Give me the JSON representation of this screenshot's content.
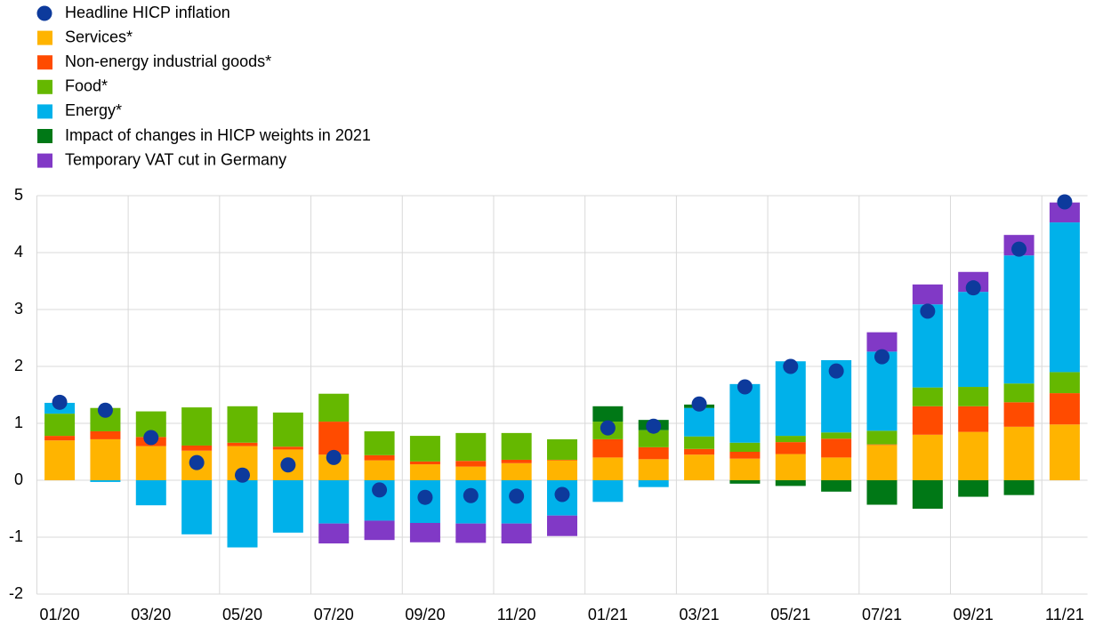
{
  "chart_data": {
    "type": "stacked-bar-dot",
    "categories": [
      "01/20",
      null,
      "03/20",
      null,
      "05/20",
      null,
      "07/20",
      null,
      "09/20",
      null,
      "11/20",
      null,
      "01/21",
      null,
      "03/21",
      null,
      "05/21",
      null,
      "07/21",
      null,
      "09/21",
      null,
      "11/21"
    ],
    "headline": {
      "name": "Headline HICP inflation",
      "color": "#0d3a9c",
      "values": [
        1.37,
        1.23,
        0.75,
        0.31,
        0.09,
        0.27,
        0.4,
        -0.17,
        -0.3,
        -0.27,
        -0.28,
        -0.25,
        0.92,
        0.95,
        1.34,
        1.64,
        2.0,
        1.92,
        2.17,
        2.97,
        3.38,
        4.06,
        4.89
      ]
    },
    "series": [
      {
        "name": "Services*",
        "color": "#ffb400",
        "values": [
          0.7,
          0.72,
          0.6,
          0.52,
          0.6,
          0.54,
          0.45,
          0.35,
          0.28,
          0.24,
          0.3,
          0.35,
          0.4,
          0.37,
          0.45,
          0.38,
          0.46,
          0.4,
          0.62,
          0.8,
          0.85,
          0.94,
          0.98
        ]
      },
      {
        "name": "Non-energy industrial goods*",
        "color": "#ff4b00",
        "values": [
          0.08,
          0.14,
          0.16,
          0.09,
          0.06,
          0.05,
          0.58,
          0.09,
          0.05,
          0.1,
          0.06,
          0.01,
          0.32,
          0.21,
          0.1,
          0.12,
          0.21,
          0.33,
          0.01,
          0.5,
          0.45,
          0.43,
          0.55
        ]
      },
      {
        "name": "Food*",
        "color": "#65b800",
        "values": [
          0.39,
          0.41,
          0.45,
          0.67,
          0.64,
          0.6,
          0.49,
          0.42,
          0.45,
          0.49,
          0.47,
          0.36,
          0.31,
          0.3,
          0.22,
          0.16,
          0.11,
          0.11,
          0.24,
          0.33,
          0.34,
          0.33,
          0.37
        ]
      },
      {
        "name": "Energy*",
        "color": "#00b1ea",
        "values": [
          0.19,
          -0.03,
          -0.44,
          -0.95,
          -1.18,
          -0.92,
          -0.76,
          -0.71,
          -0.75,
          -0.76,
          -0.76,
          -0.62,
          -0.38,
          -0.12,
          0.5,
          1.03,
          1.31,
          1.27,
          1.39,
          1.46,
          1.67,
          2.25,
          2.63
        ]
      },
      {
        "name": "Impact of changes in HICP weights in 2021",
        "color": "#007816",
        "values": [
          0,
          0,
          0,
          0,
          0,
          0,
          0,
          0,
          0,
          0,
          0,
          0,
          0.27,
          0.18,
          0.06,
          -0.06,
          -0.1,
          -0.2,
          -0.43,
          -0.5,
          -0.29,
          -0.26,
          0
        ]
      },
      {
        "name": "Temporary VAT cut in Germany",
        "color": "#8139c6",
        "values": [
          0,
          0,
          0,
          0,
          0,
          0,
          -0.35,
          -0.34,
          -0.34,
          -0.34,
          -0.35,
          -0.36,
          0,
          0,
          0,
          0,
          0,
          0,
          0.34,
          0.35,
          0.35,
          0.36,
          0.35
        ]
      }
    ],
    "ylim": [
      -2,
      5
    ],
    "yticks": [
      -2,
      -1,
      0,
      1,
      2,
      3,
      4,
      5
    ],
    "grid": true
  }
}
